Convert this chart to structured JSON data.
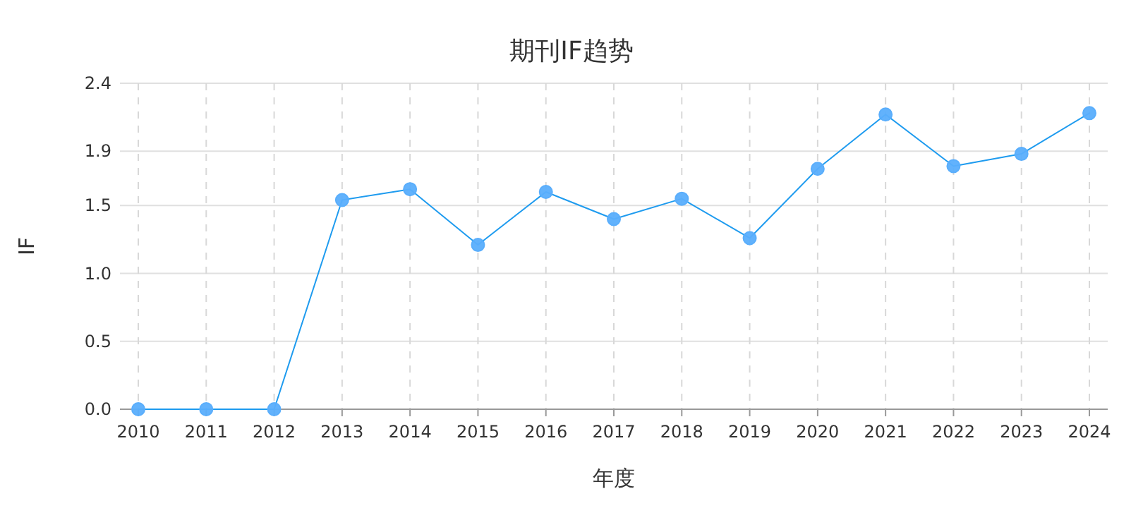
{
  "chart_data": {
    "type": "line",
    "title": "期刊IF趋势",
    "xlabel": "年度",
    "ylabel": "IF",
    "categories": [
      "2010",
      "2011",
      "2012",
      "2013",
      "2014",
      "2015",
      "2016",
      "2017",
      "2018",
      "2019",
      "2020",
      "2021",
      "2022",
      "2023",
      "2024"
    ],
    "series": [
      {
        "color": "#1e9bef",
        "values": [
          0,
          0,
          0,
          1.54,
          1.62,
          1.21,
          1.6,
          1.4,
          1.55,
          1.26,
          1.77,
          2.17,
          1.79,
          1.88,
          2.18
        ]
      }
    ],
    "ylim": [
      0,
      2.4
    ],
    "yticks": [
      {
        "value": 0,
        "label": "0.0"
      },
      0.5,
      {
        "value": 1,
        "label": "1.0"
      },
      1.5,
      1.9,
      2.4
    ],
    "grid": true,
    "marker": "circle",
    "line_style": "solid"
  }
}
